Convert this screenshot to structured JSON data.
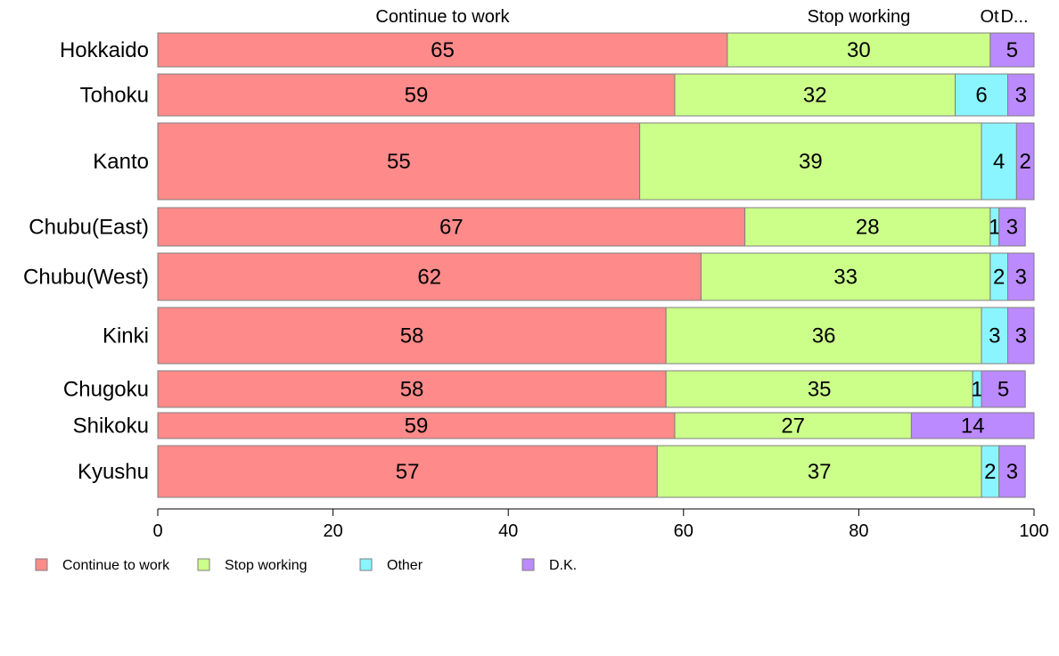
{
  "chart_data": {
    "type": "bar",
    "orientation": "horizontal",
    "stacked": true,
    "categories": [
      "Hokkaido",
      "Tohoku",
      "Kanto",
      "Chubu(East)",
      "Chubu(West)",
      "Kinki",
      "Chugoku",
      "Shikoku",
      "Kyushu"
    ],
    "series": [
      {
        "name": "Continue to work",
        "color": "#ff8a8a",
        "values": [
          65,
          59,
          55,
          67,
          62,
          58,
          58,
          59,
          57
        ]
      },
      {
        "name": "Stop working",
        "color": "#ccff8a",
        "values": [
          30,
          32,
          39,
          28,
          33,
          36,
          35,
          27,
          37
        ]
      },
      {
        "name": "Other",
        "color": "#8af5ff",
        "values": [
          0,
          6,
          4,
          1,
          2,
          3,
          1,
          0,
          2
        ]
      },
      {
        "name": "D.K.",
        "color": "#bb8aff",
        "values": [
          5,
          3,
          2,
          3,
          3,
          3,
          5,
          14,
          3
        ]
      }
    ],
    "top_labels": [
      "Continue to work",
      "Stop working",
      "Ot",
      "D..."
    ],
    "x_ticks": [
      "0",
      "20",
      "40",
      "60",
      "80",
      "100"
    ],
    "xlim": [
      0,
      100
    ],
    "grid": false,
    "legend_position": "bottom-left"
  }
}
